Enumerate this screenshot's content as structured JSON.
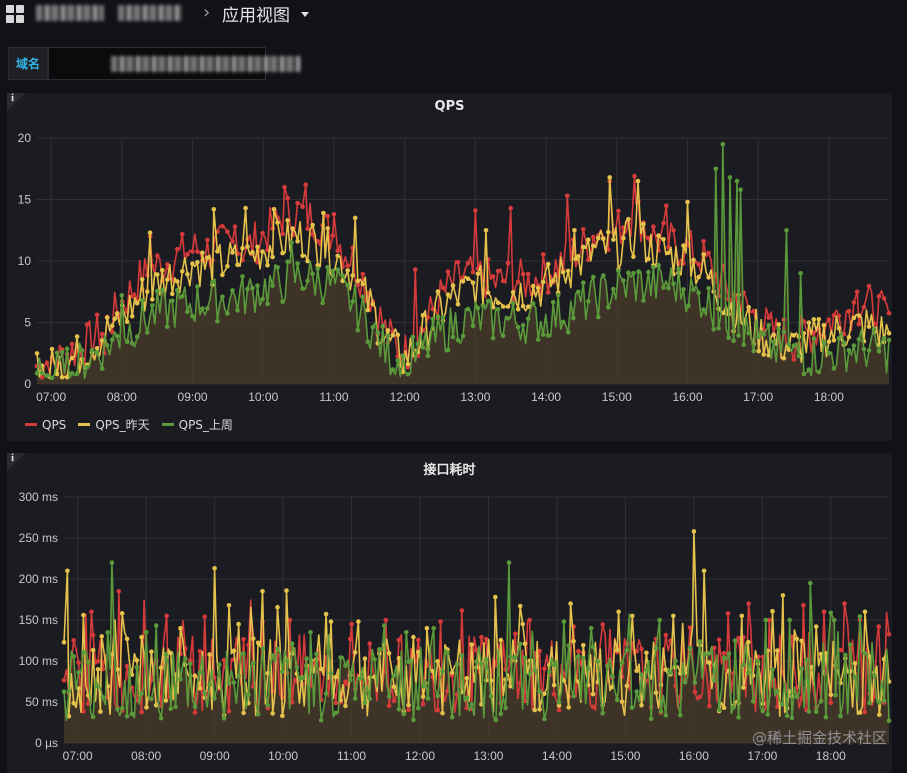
{
  "header": {
    "breadcrumb_sep": "›",
    "title": "应用视图"
  },
  "variable": {
    "label": "域名"
  },
  "panels": [
    {
      "title": "QPS"
    },
    {
      "title": "接口耗时"
    }
  ],
  "watermark": "@稀土掘金技术社区",
  "colors": {
    "red": "#d63b3b",
    "yellow": "#e5c24b",
    "green": "#5b9a3b",
    "bg": "#111217",
    "panel": "#1b1c21"
  },
  "chart_data": [
    {
      "type": "line",
      "title": "QPS",
      "x_ticks": [
        "07:00",
        "08:00",
        "09:00",
        "10:00",
        "11:00",
        "12:00",
        "13:00",
        "14:00",
        "15:00",
        "16:00",
        "17:00",
        "18:00"
      ],
      "y_ticks": [
        "0",
        "5",
        "10",
        "15",
        "20"
      ],
      "ylim": [
        0,
        20
      ],
      "xlim_hours": [
        6.8,
        18.85
      ],
      "legend": "bottom-left",
      "grid": true,
      "series": [
        {
          "name": "QPS",
          "color": "#d63b3b",
          "x": [
            6.8,
            7.0,
            7.25,
            7.5,
            7.75,
            8.0,
            8.25,
            8.5,
            8.75,
            9.0,
            9.25,
            9.5,
            9.75,
            10.0,
            10.25,
            10.5,
            10.75,
            11.0,
            11.25,
            11.5,
            11.75,
            12.0,
            12.25,
            12.5,
            12.75,
            13.0,
            13.25,
            13.5,
            13.75,
            14.0,
            14.25,
            14.5,
            14.75,
            15.0,
            15.25,
            15.5,
            15.75,
            16.0,
            16.25,
            16.5,
            16.75,
            17.0,
            17.25,
            17.5,
            17.75,
            18.0,
            18.25,
            18.5,
            18.85
          ],
          "y": [
            1.5,
            1.8,
            2.5,
            3.2,
            4.5,
            6.5,
            8.5,
            9.5,
            10.2,
            11,
            10.8,
            11.5,
            11,
            12,
            13.5,
            14,
            13.2,
            12,
            10.2,
            7.5,
            4,
            2.5,
            4.5,
            7,
            8.5,
            9,
            8.2,
            8.5,
            8.3,
            9,
            10,
            11,
            12.5,
            12.5,
            14,
            12,
            11.5,
            11,
            10,
            8,
            6.5,
            5.2,
            4,
            3.6,
            4.2,
            5,
            6,
            6.5,
            5.5
          ],
          "spikes": [
            [
              7.75,
              2.5
            ],
            [
              8.4,
              12
            ],
            [
              9.6,
              12.8
            ],
            [
              10.3,
              16
            ],
            [
              10.6,
              16.2
            ],
            [
              11.0,
              13.8
            ],
            [
              12.15,
              9.3
            ],
            [
              13.0,
              14.1
            ],
            [
              13.5,
              14.3
            ],
            [
              14.3,
              15.3
            ],
            [
              14.9,
              16.5
            ],
            [
              15.25,
              16.9
            ],
            [
              15.7,
              14.5
            ],
            [
              18.4,
              7.5
            ]
          ]
        },
        {
          "name": "QPS_昨天",
          "color": "#e5c24b",
          "x": [
            6.8,
            7.0,
            7.25,
            7.5,
            7.75,
            8.0,
            8.25,
            8.5,
            8.75,
            9.0,
            9.25,
            9.5,
            9.75,
            10.0,
            10.25,
            10.5,
            10.75,
            11.0,
            11.25,
            11.5,
            11.75,
            12.0,
            12.25,
            12.5,
            12.75,
            13.0,
            13.25,
            13.5,
            13.75,
            14.0,
            14.25,
            14.5,
            14.75,
            15.0,
            15.25,
            15.5,
            15.75,
            16.0,
            16.25,
            16.5,
            16.75,
            17.0,
            17.25,
            17.5,
            17.75,
            18.0,
            18.25,
            18.5,
            18.85
          ],
          "y": [
            1,
            1.2,
            1.8,
            2.8,
            4,
            5.5,
            7,
            8.2,
            9,
            9.8,
            9.5,
            10,
            10,
            11,
            11.5,
            12,
            11.5,
            10.5,
            9,
            6.5,
            3.5,
            2,
            4,
            6,
            7.2,
            8,
            7.5,
            7.5,
            7.5,
            8,
            9,
            10,
            11,
            11,
            12,
            11,
            10.5,
            10,
            9,
            7,
            5.5,
            4.2,
            3.4,
            3,
            3.5,
            4,
            4.5,
            4.8,
            4
          ],
          "spikes": [
            [
              7.9,
              5.3
            ],
            [
              8.4,
              12.3
            ],
            [
              9.3,
              14.2
            ],
            [
              9.75,
              14.3
            ],
            [
              10.15,
              14.2
            ],
            [
              10.85,
              13.9
            ],
            [
              11.3,
              13.5
            ],
            [
              13.15,
              12.5
            ],
            [
              14.4,
              12.5
            ],
            [
              14.9,
              16.8
            ],
            [
              15.3,
              16.5
            ],
            [
              16.0,
              14.8
            ]
          ]
        },
        {
          "name": "QPS_上周",
          "color": "#5b9a3b",
          "x": [
            6.8,
            7.0,
            7.25,
            7.5,
            7.75,
            8.0,
            8.25,
            8.5,
            8.75,
            9.0,
            9.25,
            9.5,
            9.75,
            10.0,
            10.25,
            10.5,
            10.75,
            11.0,
            11.25,
            11.5,
            11.75,
            12.0,
            12.25,
            12.5,
            12.75,
            13.0,
            13.25,
            13.5,
            13.75,
            14.0,
            14.25,
            14.5,
            14.75,
            15.0,
            15.25,
            15.5,
            15.75,
            16.0,
            16.25,
            16.5,
            16.75,
            17.0,
            17.25,
            17.5,
            17.75,
            18.0,
            18.25,
            18.5,
            18.85
          ],
          "y": [
            0.5,
            0.8,
            1.2,
            2,
            3,
            4,
            5,
            5.8,
            6.2,
            6.5,
            6.8,
            7,
            7.2,
            7.8,
            8.2,
            8.8,
            8.5,
            8,
            6.8,
            4.8,
            2.5,
            1.5,
            2.8,
            4,
            5,
            5.3,
            5.2,
            5.2,
            5,
            5.3,
            5.8,
            6.5,
            7.2,
            7.8,
            8.2,
            8,
            8.3,
            7.6,
            6.8,
            5.5,
            4.5,
            3.5,
            2.8,
            2.4,
            2.3,
            2.5,
            2.8,
            2.9,
            2.6
          ],
          "spikes": [
            [
              8.0,
              7.2
            ],
            [
              10.4,
              11.5
            ],
            [
              16.4,
              17.5
            ],
            [
              16.5,
              19.5
            ],
            [
              16.6,
              16.8
            ],
            [
              16.7,
              16.5
            ],
            [
              16.75,
              15.8
            ],
            [
              17.4,
              12.5
            ],
            [
              17.6,
              9
            ]
          ]
        }
      ]
    },
    {
      "type": "line",
      "title": "接口耗时",
      "x_ticks": [
        "07:00",
        "08:00",
        "09:00",
        "10:00",
        "11:00",
        "12:00",
        "13:00",
        "14:00",
        "15:00",
        "16:00",
        "17:00",
        "18:00"
      ],
      "y_ticks": [
        "0 µs",
        "50 ms",
        "100 ms",
        "150 ms",
        "200 ms",
        "250 ms",
        "300 ms"
      ],
      "ylim": [
        0,
        300
      ],
      "xlim_hours": [
        6.8,
        18.85
      ],
      "grid": true,
      "series": [
        {
          "name": "QPS",
          "color": "#d63b3b",
          "baseline": 85,
          "spikes": [
            [
              7.2,
              160
            ],
            [
              7.6,
              185
            ],
            [
              8.3,
              155
            ],
            [
              9.7,
              148
            ],
            [
              10.1,
              150
            ],
            [
              11.0,
              145
            ],
            [
              11.5,
              150
            ],
            [
              12.3,
              148
            ],
            [
              13.6,
              150
            ],
            [
              16.5,
              158
            ],
            [
              16.8,
              170
            ],
            [
              17.1,
              150
            ],
            [
              17.6,
              168
            ],
            [
              17.9,
              160
            ],
            [
              18.2,
              170
            ],
            [
              18.7,
              142
            ]
          ]
        },
        {
          "name": "QPS_昨天",
          "color": "#e5c24b",
          "baseline": 80,
          "spikes": [
            [
              6.85,
              210
            ],
            [
              7.35,
              130
            ],
            [
              8.5,
              140
            ],
            [
              9.0,
              213
            ],
            [
              9.35,
              145
            ],
            [
              9.7,
              185
            ],
            [
              10.05,
              186
            ],
            [
              10.7,
              148
            ],
            [
              11.1,
              148
            ],
            [
              12.1,
              140
            ],
            [
              13.1,
              178
            ],
            [
              13.5,
              145
            ],
            [
              14.2,
              170
            ],
            [
              14.9,
              160
            ],
            [
              15.1,
              155
            ],
            [
              15.7,
              155
            ],
            [
              16.0,
              258
            ],
            [
              16.15,
              210
            ],
            [
              16.7,
              155
            ],
            [
              17.3,
              180
            ],
            [
              18.5,
              160
            ]
          ]
        },
        {
          "name": "QPS_上周",
          "color": "#5b9a3b",
          "baseline": 75,
          "spikes": [
            [
              7.5,
              220
            ],
            [
              8.0,
              135
            ],
            [
              10.4,
              135
            ],
            [
              11.8,
              135
            ],
            [
              12.2,
              140
            ],
            [
              13.3,
              220
            ],
            [
              14.5,
              140
            ],
            [
              15.5,
              150
            ],
            [
              16.6,
              125
            ],
            [
              17.05,
              150
            ],
            [
              17.4,
              150
            ],
            [
              17.7,
              195
            ],
            [
              18.05,
              150
            ]
          ]
        }
      ]
    }
  ]
}
